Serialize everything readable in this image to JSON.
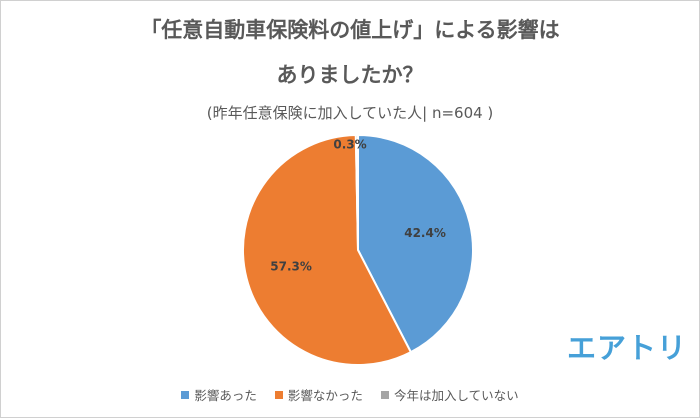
{
  "chart_data": {
    "type": "pie",
    "title_line1": "「任意自動車保険料の値上げ」による影響は",
    "title_line2": "ありましたか？",
    "subtitle": "(昨年任意保険に加入していた人| n=604 )",
    "categories": [
      "影響あった",
      "影響なかった",
      "今年は加入していない"
    ],
    "values": [
      42.4,
      57.3,
      0.3
    ],
    "labels": [
      "42.4%",
      "57.3%",
      "0.3%"
    ],
    "colors": [
      "#5b9bd5",
      "#ed7d31",
      "#a5a5a5"
    ],
    "start": "12 o'clock, clockwise",
    "legend_position": "bottom"
  },
  "brand": {
    "logo_text": "エアトリ",
    "color": "#46a0d8"
  }
}
